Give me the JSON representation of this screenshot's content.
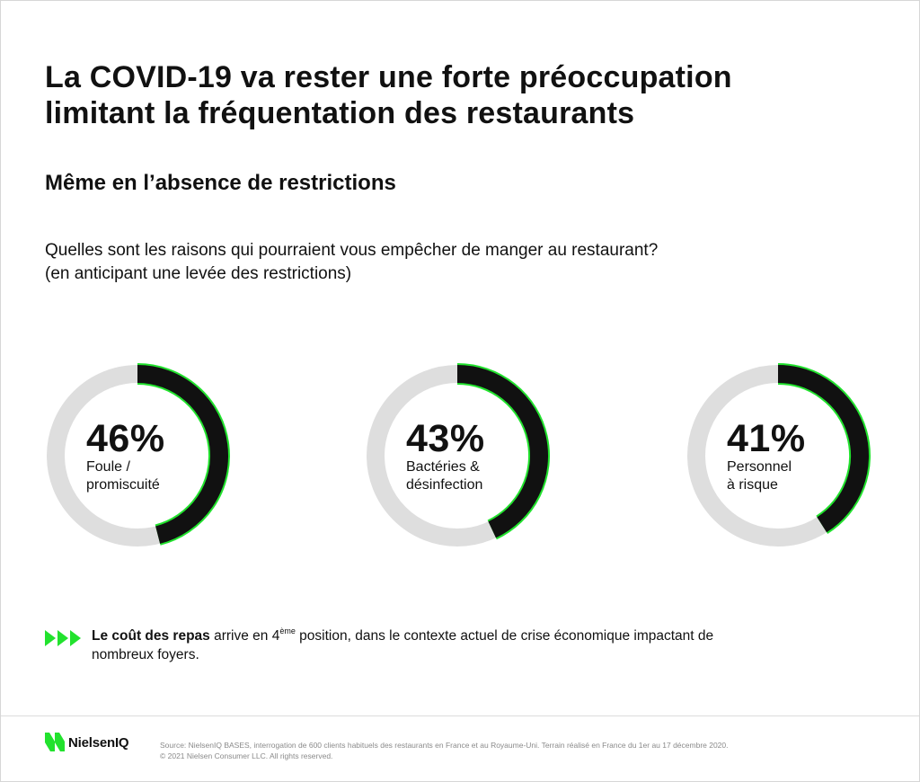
{
  "title_lines": [
    "La COVID-19 va rester une forte préoccupation",
    "limitant la fréquentation des restaurants"
  ],
  "subtitle": "Même en l’absence de restrictions",
  "question_lines": [
    "Quelles sont les raisons qui pourraient vous empêcher de manger au restaurant?",
    "(en anticipant une levée des restrictions)"
  ],
  "colors": {
    "arc_fill": "#111111",
    "arc_outline": "#22e22e",
    "track": "#dedede",
    "accent_green": "#22e22e"
  },
  "chart_data": {
    "type": "donut",
    "items": [
      {
        "value": 46,
        "display": "46%",
        "label_lines": [
          "Foule /",
          "promiscuité"
        ]
      },
      {
        "value": 43,
        "display": "43%",
        "label_lines": [
          "Bactéries &",
          "désinfection"
        ]
      },
      {
        "value": 41,
        "display": "41%",
        "label_lines": [
          "Personnel",
          "à risque"
        ]
      }
    ]
  },
  "note": {
    "bold": "Le coût des repas",
    "pre": " arrive en 4",
    "sup": "ème",
    "post": " position, dans le contexte actuel de crise économique impactant de nombreux foyers."
  },
  "footer": {
    "brand": "NielsenIQ",
    "source_lines": [
      "Source: NielsenIQ BASES, interrogation de 600 clients habituels des restaurants en France et au Royaume-Uni. Terrain réalisé en France du 1er au 17 décembre 2020.",
      "© 2021 Nielsen Consumer LLC. All rights reserved."
    ]
  }
}
